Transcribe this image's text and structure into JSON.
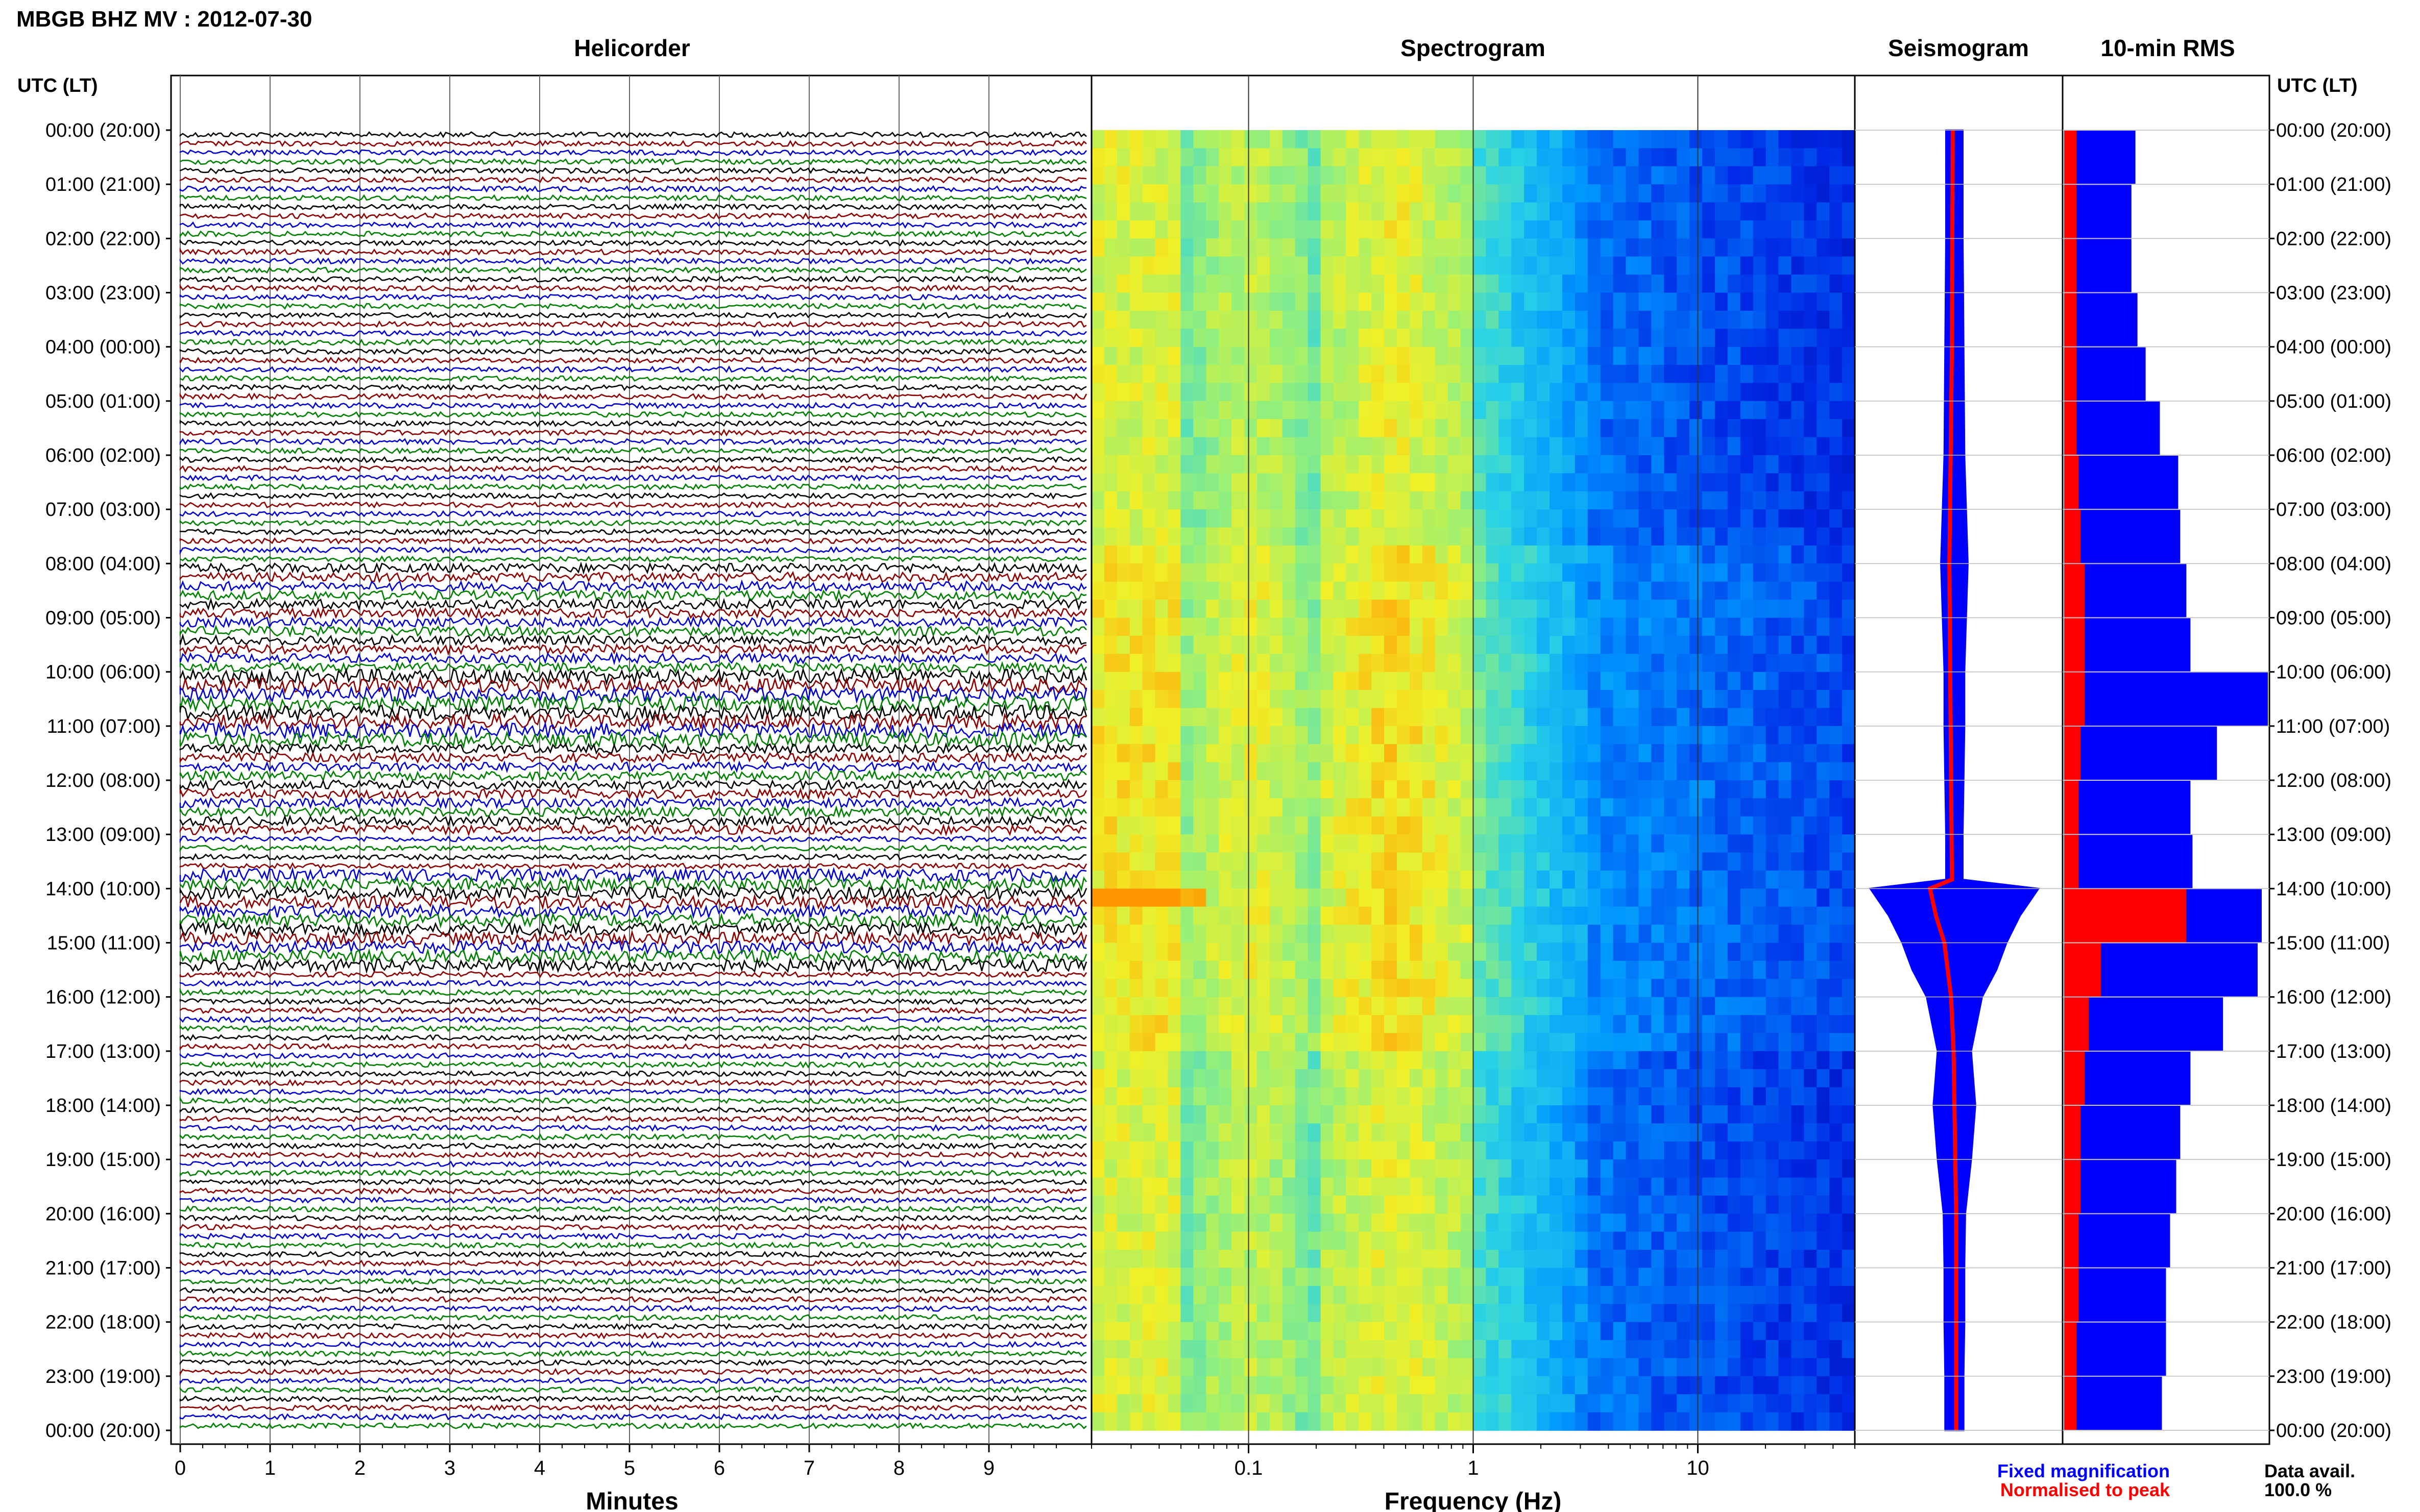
{
  "header": {
    "title": "MBGB BHZ MV : 2012-07-30"
  },
  "panels": {
    "helicorder": "Helicorder",
    "spectrogram": "Spectrogram",
    "seismogram": "Seismogram",
    "rms": "10-min RMS"
  },
  "axes": {
    "utc_label_left": "UTC (LT)",
    "utc_label_right": "UTC (LT)",
    "minutes_label": "Minutes",
    "frequency_label": "Frequency (Hz)",
    "minute_ticks": [
      "0",
      "1",
      "2",
      "3",
      "4",
      "5",
      "6",
      "7",
      "8",
      "9"
    ],
    "frequency_ticks": [
      "0.1",
      "1",
      "10"
    ]
  },
  "time_labels": [
    "00:00 (20:00)",
    "01:00 (21:00)",
    "02:00 (22:00)",
    "03:00 (23:00)",
    "04:00 (00:00)",
    "05:00 (01:00)",
    "06:00 (02:00)",
    "07:00 (03:00)",
    "08:00 (04:00)",
    "09:00 (05:00)",
    "10:00 (06:00)",
    "11:00 (07:00)",
    "12:00 (08:00)",
    "13:00 (09:00)",
    "14:00 (10:00)",
    "15:00 (11:00)",
    "16:00 (12:00)",
    "17:00 (13:00)",
    "18:00 (14:00)",
    "19:00 (15:00)",
    "20:00 (16:00)",
    "21:00 (17:00)",
    "22:00 (18:00)",
    "23:00 (19:00)",
    "00:00 (20:00)"
  ],
  "legend": {
    "fixed": "Fixed magnification",
    "normalised": "Normalised to peak",
    "data_avail_label": "Data avail.",
    "data_avail_value": "100.0 %"
  },
  "colors": {
    "trace_cycle": [
      "#000000",
      "#8b0000",
      "#0000cc",
      "#008000"
    ],
    "fixed": "#0000ff",
    "normalised": "#ff0000"
  },
  "chart_data": [
    {
      "type": "line",
      "title": "Helicorder",
      "xlabel": "Minutes",
      "xlim": [
        0,
        10
      ],
      "rows_per_hour": 6,
      "hours": 24,
      "series_colors_cycle": [
        "black",
        "darkred",
        "blue",
        "green"
      ]
    },
    {
      "type": "heatmap",
      "title": "Spectrogram",
      "xlabel": "Frequency (Hz)",
      "xscale": "log",
      "xlim": [
        0.02,
        50
      ]
    },
    {
      "type": "line",
      "title": "Seismogram",
      "series": [
        {
          "name": "Fixed magnification",
          "color": "blue",
          "x": [
            "00:00",
            "02:00",
            "04:00",
            "06:00",
            "08:00",
            "09:00",
            "10:00",
            "11:00",
            "12:00",
            "13:00",
            "13:50",
            "14:00",
            "14:30",
            "15:00",
            "15:30",
            "16:00",
            "17:00",
            "18:00",
            "19:00",
            "20:00",
            "21:00",
            "22:00",
            "23:00",
            "24:00"
          ],
          "values": [
            0.1,
            0.1,
            0.11,
            0.12,
            0.16,
            0.14,
            0.12,
            0.12,
            0.11,
            0.1,
            0.1,
            1.0,
            0.78,
            0.62,
            0.5,
            0.33,
            0.2,
            0.25,
            0.2,
            0.13,
            0.12,
            0.12,
            0.11,
            0.11
          ]
        },
        {
          "name": "Normalised to peak",
          "color": "red",
          "x": [
            "00:00",
            "04:00",
            "08:00",
            "10:00",
            "13:50",
            "14:00",
            "14:30",
            "15:00",
            "16:00",
            "17:00",
            "18:00",
            "19:00",
            "20:00",
            "22:00",
            "24:00"
          ],
          "values": [
            0.08,
            0.09,
            0.12,
            0.11,
            0.09,
            0.35,
            0.28,
            0.18,
            0.1,
            0.07,
            0.06,
            0.05,
            0.04,
            0.04,
            0.04
          ]
        }
      ]
    },
    {
      "type": "bar",
      "title": "10-min RMS",
      "hourly_relative_rms_fixed": [
        0.35,
        0.33,
        0.33,
        0.36,
        0.4,
        0.47,
        0.56,
        0.57,
        0.6,
        0.62,
        1.0,
        0.75,
        0.62,
        0.63,
        0.97,
        0.95,
        0.78,
        0.62,
        0.57,
        0.55,
        0.52,
        0.5,
        0.5,
        0.48
      ],
      "hourly_relative_rms_normalised": [
        0.06,
        0.06,
        0.06,
        0.06,
        0.06,
        0.06,
        0.07,
        0.08,
        0.1,
        0.1,
        0.1,
        0.08,
        0.07,
        0.07,
        0.6,
        0.18,
        0.12,
        0.1,
        0.08,
        0.08,
        0.07,
        0.07,
        0.06,
        0.06
      ]
    }
  ]
}
